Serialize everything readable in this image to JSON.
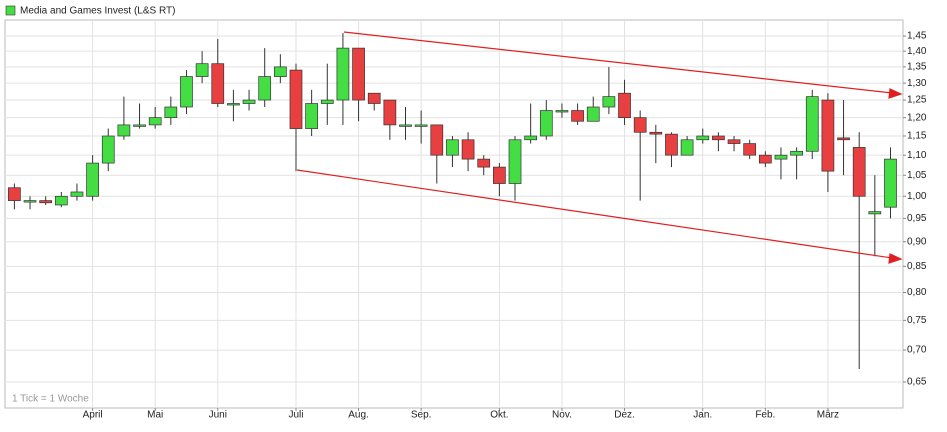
{
  "chart_data": {
    "type": "candlestick",
    "title": "Media and Games Invest (L&S RT)",
    "footnote": "1 Tick = 1 Woche",
    "up_color": "#44dd44",
    "down_color": "#e84040",
    "log_scale": true,
    "grid": true,
    "legend": "top-left",
    "ylim": [
      0.612,
      1.505
    ],
    "yticks": [
      {
        "value": 0.65,
        "label": "0,65"
      },
      {
        "value": 0.7,
        "label": "0,70"
      },
      {
        "value": 0.75,
        "label": "0,75"
      },
      {
        "value": 0.8,
        "label": "0,80"
      },
      {
        "value": 0.85,
        "label": "0,85"
      },
      {
        "value": 0.9,
        "label": "0,90"
      },
      {
        "value": 0.95,
        "label": "0,95"
      },
      {
        "value": 1.0,
        "label": "1,00"
      },
      {
        "value": 1.05,
        "label": "1,05"
      },
      {
        "value": 1.1,
        "label": "1,10"
      },
      {
        "value": 1.15,
        "label": "1,15"
      },
      {
        "value": 1.2,
        "label": "1,20"
      },
      {
        "value": 1.25,
        "label": "1,25"
      },
      {
        "value": 1.3,
        "label": "1,30"
      },
      {
        "value": 1.35,
        "label": "1,35"
      },
      {
        "value": 1.4,
        "label": "1,40"
      },
      {
        "value": 1.45,
        "label": "1,45"
      }
    ],
    "xlim": [
      -0.6,
      56.8
    ],
    "xticks": [
      {
        "value": 5,
        "label": "April"
      },
      {
        "value": 9,
        "label": "Mai"
      },
      {
        "value": 13,
        "label": "Juni"
      },
      {
        "value": 18,
        "label": "Juli"
      },
      {
        "value": 22,
        "label": "Aug."
      },
      {
        "value": 26,
        "label": "Sep."
      },
      {
        "value": 31,
        "label": "Okt."
      },
      {
        "value": 35,
        "label": "Nov."
      },
      {
        "value": 39,
        "label": "Dez."
      },
      {
        "value": 44,
        "label": "Jan."
      },
      {
        "value": 48,
        "label": "Feb."
      },
      {
        "value": 52,
        "label": "März"
      }
    ],
    "open": [
      1.02,
      0.99,
      0.99,
      0.98,
      1.0,
      1.0,
      1.08,
      1.15,
      1.18,
      1.18,
      1.2,
      1.23,
      1.32,
      1.36,
      1.24,
      1.24,
      1.25,
      1.32,
      1.34,
      1.17,
      1.24,
      1.25,
      1.41,
      1.27,
      1.25,
      1.18,
      1.18,
      1.18,
      1.1,
      1.14,
      1.09,
      1.07,
      1.03,
      1.14,
      1.15,
      1.22,
      1.22,
      1.19,
      1.23,
      1.27,
      1.2,
      1.16,
      1.155,
      1.1,
      1.14,
      1.15,
      1.14,
      1.13,
      1.1,
      1.09,
      1.1,
      1.11,
      1.25,
      1.145,
      1.12,
      0.96,
      0.975
    ],
    "high": [
      1.03,
      1.0,
      1.0,
      1.01,
      1.03,
      1.1,
      1.17,
      1.26,
      1.24,
      1.23,
      1.26,
      1.34,
      1.4,
      1.44,
      1.28,
      1.28,
      1.41,
      1.39,
      1.36,
      1.28,
      1.36,
      1.46,
      1.41,
      1.27,
      1.25,
      1.23,
      1.22,
      1.18,
      1.15,
      1.16,
      1.1,
      1.08,
      1.15,
      1.24,
      1.25,
      1.24,
      1.24,
      1.26,
      1.35,
      1.31,
      1.22,
      1.18,
      1.16,
      1.15,
      1.17,
      1.16,
      1.15,
      1.14,
      1.11,
      1.12,
      1.12,
      1.28,
      1.27,
      1.25,
      1.16,
      1.05,
      1.12
    ],
    "low": [
      0.97,
      0.97,
      0.98,
      0.975,
      0.99,
      0.99,
      1.06,
      1.14,
      1.17,
      1.17,
      1.18,
      1.21,
      1.3,
      1.23,
      1.19,
      1.22,
      1.23,
      1.3,
      1.06,
      1.15,
      1.18,
      1.18,
      1.19,
      1.22,
      1.14,
      1.14,
      1.13,
      1.03,
      1.07,
      1.06,
      1.05,
      1.0,
      0.99,
      1.13,
      1.14,
      1.2,
      1.18,
      1.19,
      1.21,
      1.18,
      0.99,
      1.08,
      1.07,
      1.1,
      1.13,
      1.11,
      1.11,
      1.09,
      1.07,
      1.04,
      1.04,
      1.09,
      1.01,
      1.05,
      0.67,
      0.87,
      0.95
    ],
    "close": [
      0.99,
      0.99,
      0.985,
      1.0,
      1.01,
      1.08,
      1.15,
      1.18,
      1.18,
      1.2,
      1.23,
      1.32,
      1.36,
      1.24,
      1.24,
      1.25,
      1.32,
      1.35,
      1.17,
      1.24,
      1.25,
      1.41,
      1.25,
      1.24,
      1.18,
      1.18,
      1.18,
      1.1,
      1.14,
      1.09,
      1.07,
      1.03,
      1.14,
      1.15,
      1.22,
      1.22,
      1.19,
      1.23,
      1.26,
      1.2,
      1.16,
      1.155,
      1.1,
      1.14,
      1.15,
      1.14,
      1.13,
      1.1,
      1.08,
      1.1,
      1.11,
      1.26,
      1.06,
      1.14,
      1.0,
      0.965,
      1.09
    ]
  }
}
